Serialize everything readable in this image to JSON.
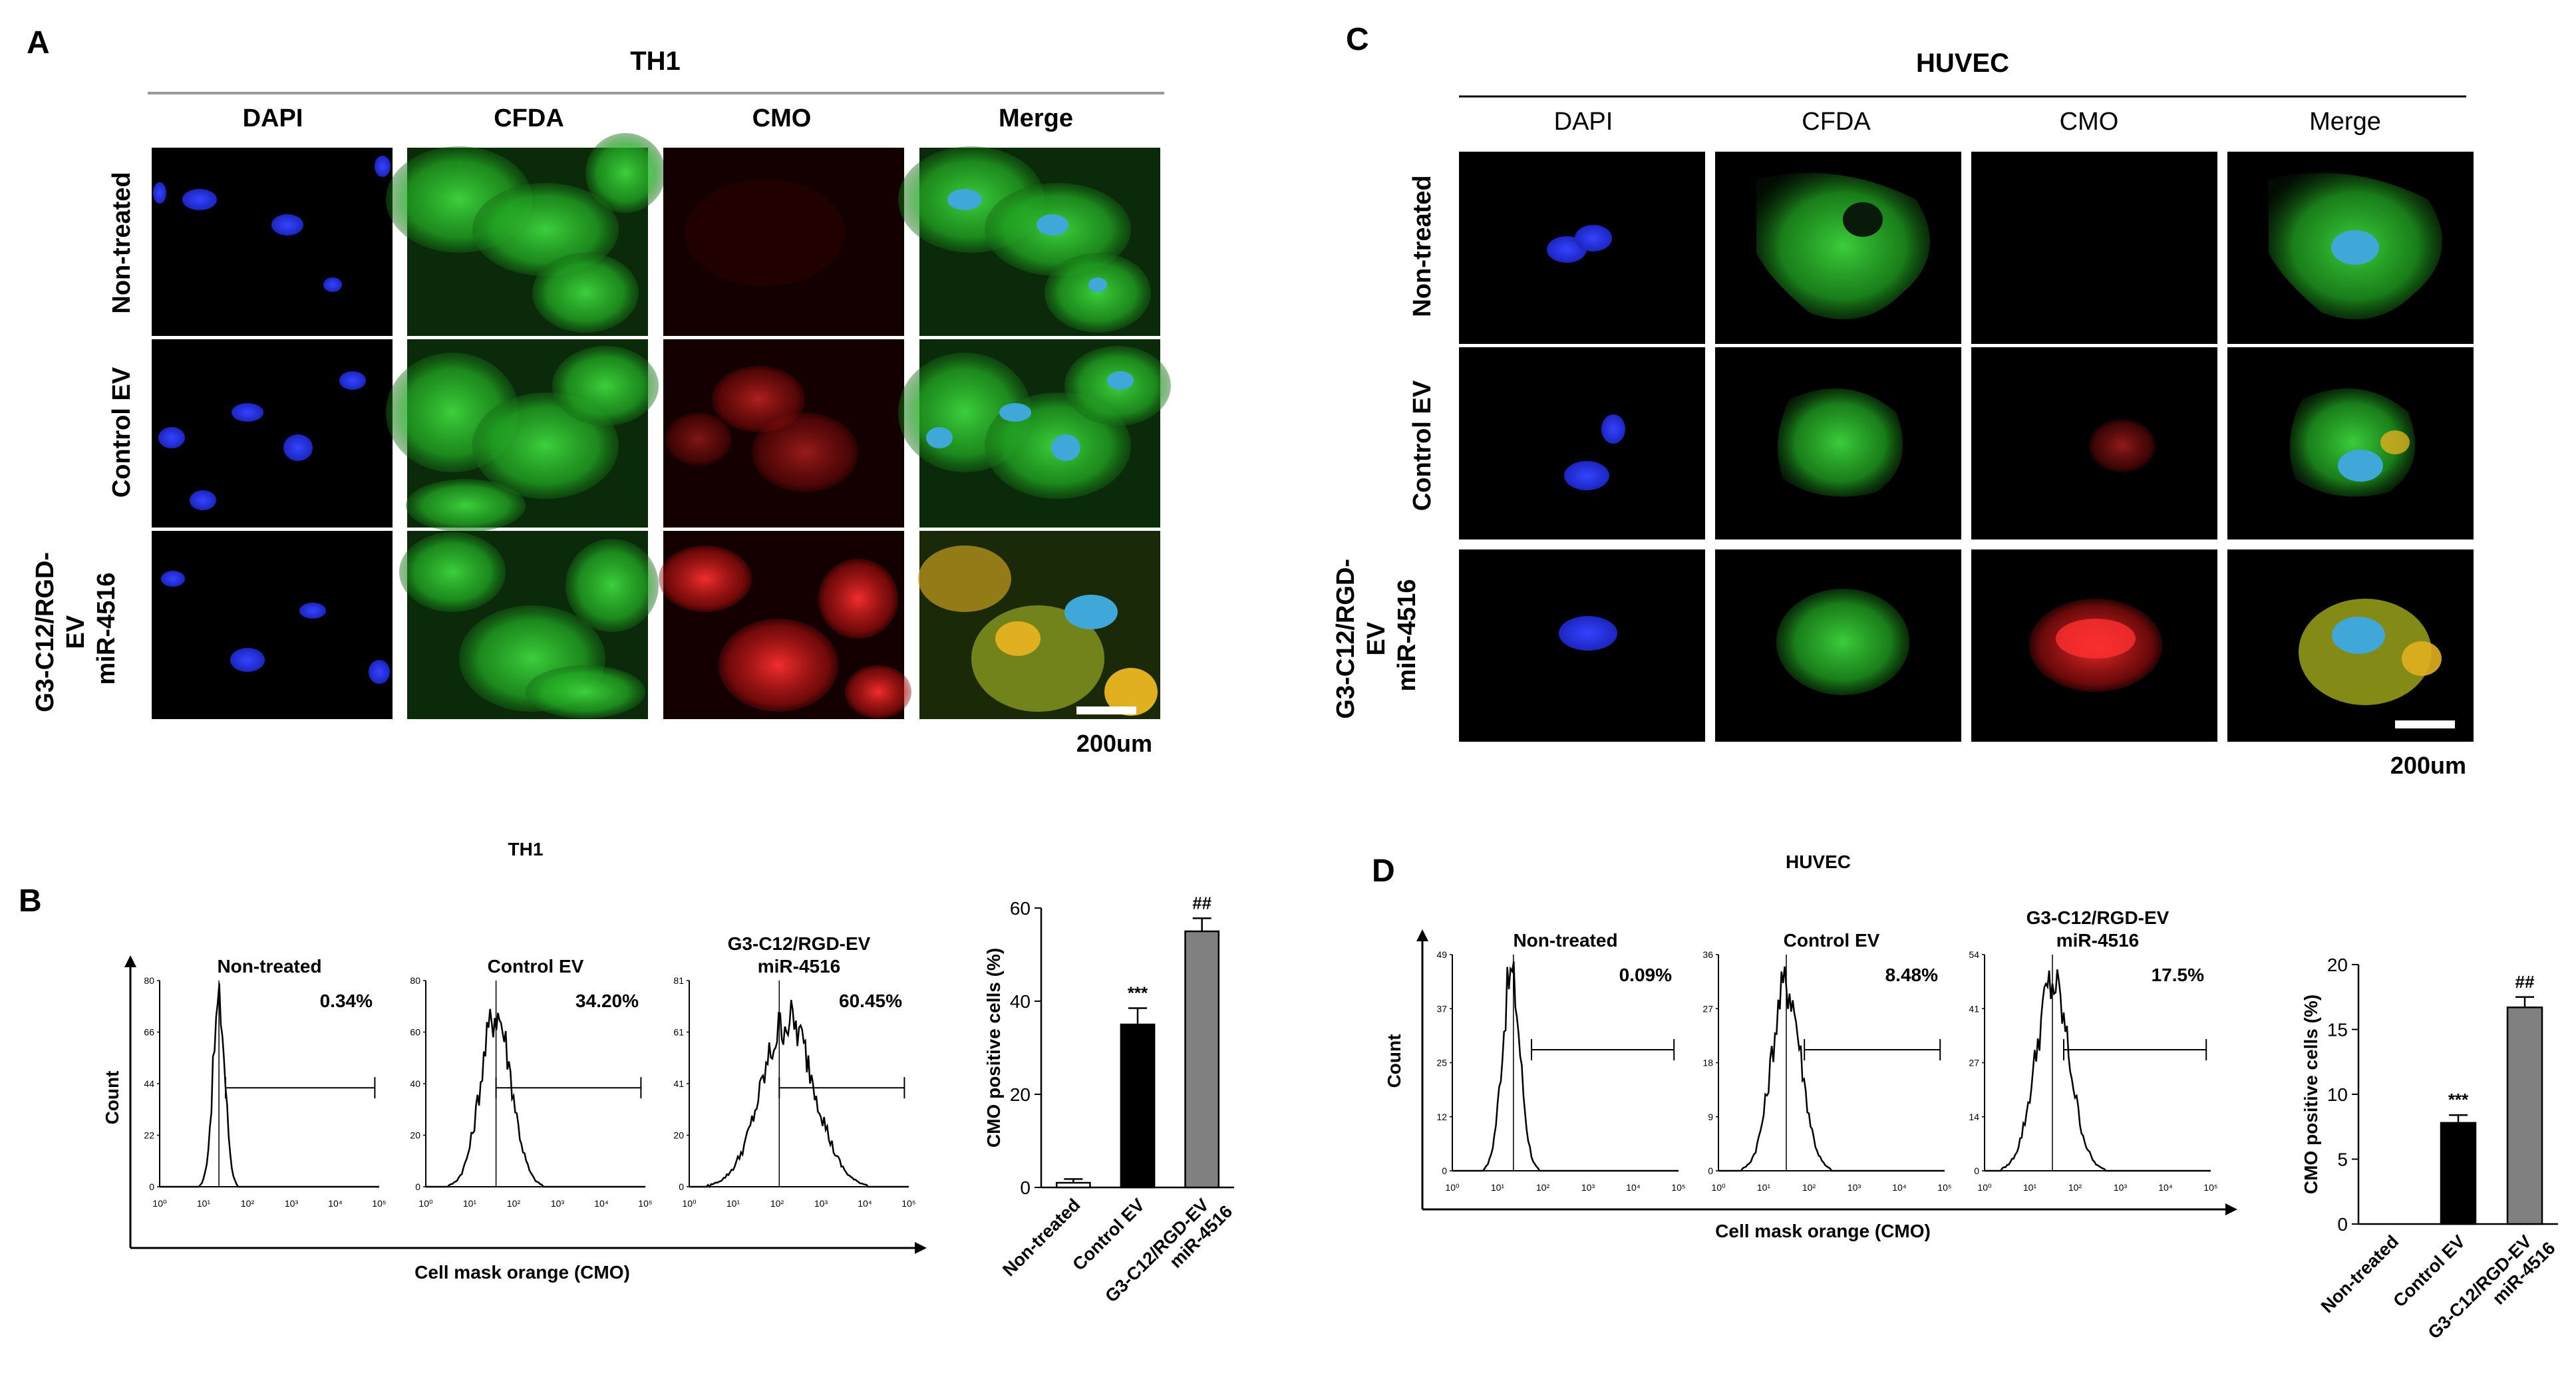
{
  "panels": {
    "A": {
      "label": "A",
      "title": "TH1",
      "scale_bar": "200um"
    },
    "B": {
      "label": "B",
      "title": "TH1"
    },
    "C": {
      "label": "C",
      "title": "HUVEC",
      "scale_bar": "200um"
    },
    "D": {
      "label": "D",
      "title": "HUVEC"
    }
  },
  "columns": [
    "DAPI",
    "CFDA",
    "CMO",
    "Merge"
  ],
  "rows": [
    {
      "lines": [
        "Non-treated"
      ]
    },
    {
      "lines": [
        "Control EV"
      ]
    },
    {
      "lines": [
        "G3-C12/RGD-",
        "EV",
        "miR-4516"
      ]
    }
  ],
  "flow_B": {
    "x_axis_label": "Cell mask orange (CMO)",
    "y_axis_label": "Count",
    "x_ticks": [
      "10⁰",
      "10¹",
      "10²",
      "10³",
      "10⁴",
      "10⁵"
    ],
    "plots": [
      {
        "title_lines": [
          "Non-treated"
        ],
        "percent": "0.34%",
        "y_ticks": [
          "80",
          "66",
          "44",
          "22",
          "0"
        ]
      },
      {
        "title_lines": [
          "Control EV"
        ],
        "percent": "34.20%",
        "y_ticks": [
          "80",
          "60",
          "40",
          "20",
          "0"
        ]
      },
      {
        "title_lines": [
          "G3-C12/RGD-EV",
          "miR-4516"
        ],
        "percent": "60.45%",
        "y_ticks": [
          "81",
          "61",
          "41",
          "20",
          "0"
        ]
      }
    ]
  },
  "flow_D": {
    "x_axis_label": "Cell mask orange (CMO)",
    "y_axis_label": "Count",
    "x_ticks": [
      "10⁰",
      "10¹",
      "10²",
      "10³",
      "10⁴",
      "10⁵"
    ],
    "plots": [
      {
        "title_lines": [
          "Non-treated"
        ],
        "percent": "0.09%",
        "y_ticks": [
          "49",
          "37",
          "25",
          "12",
          "0"
        ]
      },
      {
        "title_lines": [
          "Control EV"
        ],
        "percent": "8.48%",
        "y_ticks": [
          "36",
          "27",
          "18",
          "9",
          "0"
        ]
      },
      {
        "title_lines": [
          "G3-C12/RGD-EV",
          "miR-4516"
        ],
        "percent": "17.5%",
        "y_ticks": [
          "54",
          "41",
          "27",
          "14",
          "0"
        ]
      }
    ]
  },
  "chart_data": [
    {
      "type": "bar",
      "panel": "B",
      "categories": [
        "Non-treated",
        "Control EV",
        "G3-C12/RGD-EV miR-4516"
      ],
      "category_label_lines": [
        [
          "Non-treated"
        ],
        [
          "Control EV"
        ],
        [
          "G3-C12/RGD-EV",
          "miR-4516"
        ]
      ],
      "values": [
        1,
        35,
        55
      ],
      "errors": [
        0.8,
        3.5,
        2.8
      ],
      "significance": [
        "",
        "***",
        "##"
      ],
      "bar_colors": [
        "#ffffff",
        "#000000",
        "#808080"
      ],
      "ylabel": "CMO positive cells (%)",
      "ylim": [
        0,
        60
      ],
      "yticks": [
        0,
        20,
        40,
        60
      ]
    },
    {
      "type": "bar",
      "panel": "D",
      "categories": [
        "Non-treated",
        "Control EV",
        "G3-C12/RGD-EV miR-4516"
      ],
      "category_label_lines": [
        [
          "Non-treated"
        ],
        [
          "Control EV"
        ],
        [
          "G3-C12/RGD-EV",
          "miR-4516"
        ]
      ],
      "values": [
        0,
        7.8,
        16.7
      ],
      "errors": [
        0,
        0.6,
        0.8
      ],
      "significance": [
        "",
        "***",
        "##"
      ],
      "bar_colors": [
        "#ffffff",
        "#000000",
        "#808080"
      ],
      "ylabel": "CMO positive cells (%)",
      "ylim": [
        0,
        20
      ],
      "yticks": [
        0,
        5,
        10,
        15,
        20
      ]
    }
  ],
  "colors": {
    "dapi": "#2233ff",
    "cfda": "#2fc32f",
    "cmo": "#ff2222",
    "merge_nucleus": "#3fa8d8",
    "merge_overlap": "#e0b020",
    "control_ev_bar": "#000000",
    "mir4516_bar": "#808080"
  }
}
